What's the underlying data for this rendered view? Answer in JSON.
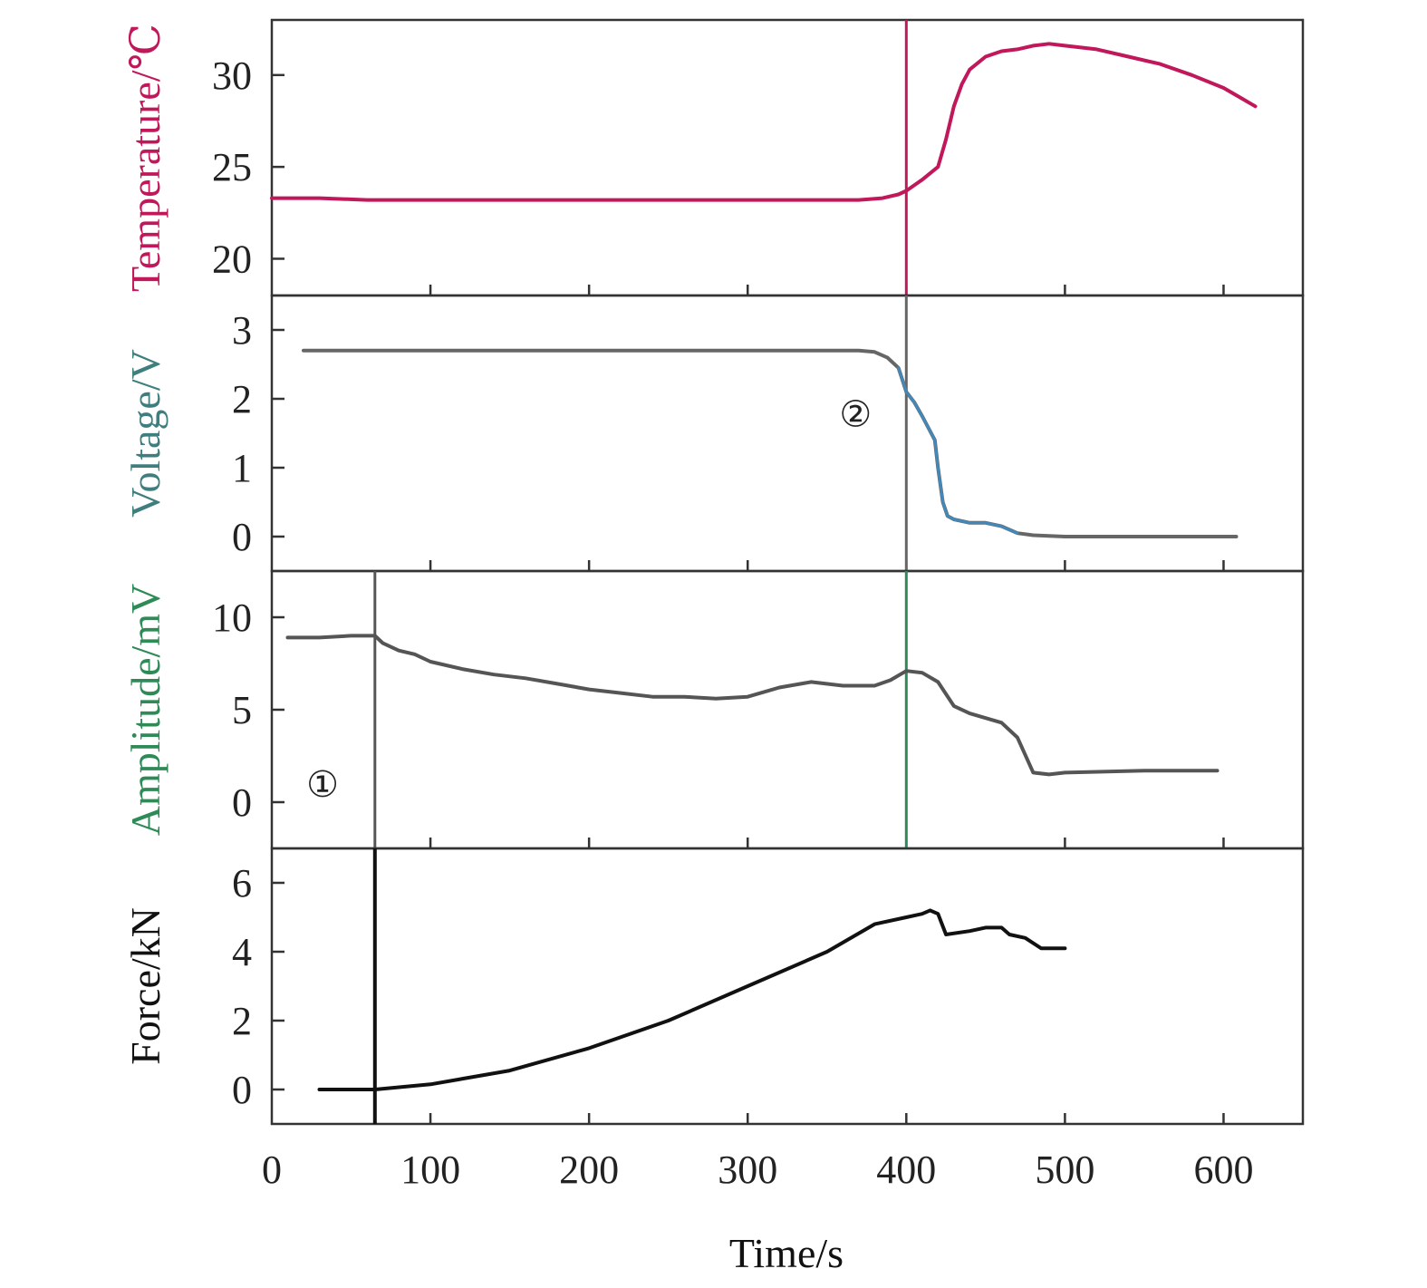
{
  "chart_data": {
    "type": "line",
    "x": {
      "label": "Time/s",
      "range": [
        0,
        650
      ],
      "ticks": [
        0,
        100,
        200,
        300,
        400,
        500,
        600
      ]
    },
    "panels": [
      {
        "id": "temperature",
        "ylabel": "Temperature/℃",
        "ylim": [
          18,
          33
        ],
        "yticks": [
          20,
          25,
          30
        ],
        "color": "#c0185a",
        "series": [
          {
            "points": [
              [
                0,
                23.3
              ],
              [
                30,
                23.3
              ],
              [
                60,
                23.2
              ],
              [
                100,
                23.2
              ],
              [
                200,
                23.2
              ],
              [
                300,
                23.2
              ],
              [
                370,
                23.2
              ],
              [
                385,
                23.3
              ],
              [
                395,
                23.5
              ],
              [
                400,
                23.7
              ],
              [
                410,
                24.3
              ],
              [
                420,
                25.0
              ],
              [
                425,
                26.5
              ],
              [
                430,
                28.3
              ],
              [
                435,
                29.5
              ],
              [
                440,
                30.3
              ],
              [
                450,
                31.0
              ],
              [
                460,
                31.3
              ],
              [
                470,
                31.4
              ],
              [
                480,
                31.6
              ],
              [
                490,
                31.7
              ],
              [
                500,
                31.6
              ],
              [
                520,
                31.4
              ],
              [
                540,
                31.0
              ],
              [
                560,
                30.6
              ],
              [
                580,
                30.0
              ],
              [
                600,
                29.3
              ],
              [
                610,
                28.8
              ],
              [
                620,
                28.3
              ]
            ]
          }
        ],
        "markers": [
          {
            "x": 400,
            "color": "#c0185a"
          }
        ]
      },
      {
        "id": "voltage",
        "ylabel": "Voltage/V",
        "ylim": [
          -0.5,
          3.5
        ],
        "yticks": [
          0,
          1,
          2,
          3
        ],
        "color": "#666666",
        "highlight_color": "#3d8ec9",
        "series": [
          {
            "points": [
              [
                20,
                2.7
              ],
              [
                100,
                2.7
              ],
              [
                200,
                2.7
              ],
              [
                300,
                2.7
              ],
              [
                370,
                2.7
              ],
              [
                380,
                2.68
              ],
              [
                388,
                2.6
              ],
              [
                395,
                2.45
              ],
              [
                400,
                2.1
              ],
              [
                405,
                1.95
              ],
              [
                410,
                1.75
              ],
              [
                418,
                1.4
              ],
              [
                420,
                1.0
              ],
              [
                423,
                0.5
              ],
              [
                426,
                0.3
              ],
              [
                430,
                0.25
              ],
              [
                440,
                0.2
              ],
              [
                450,
                0.2
              ],
              [
                460,
                0.15
              ],
              [
                470,
                0.05
              ],
              [
                480,
                0.02
              ],
              [
                500,
                0.0
              ],
              [
                550,
                0.0
              ],
              [
                600,
                0.0
              ],
              [
                608,
                0.0
              ]
            ]
          }
        ],
        "markers": [
          {
            "x": 400,
            "color": "#666666"
          }
        ],
        "annotations": [
          {
            "text": "②",
            "x": 368,
            "y": 1.6
          }
        ]
      },
      {
        "id": "amplitude",
        "ylabel": "Amplitude/mV",
        "ylim": [
          -2.5,
          12.5
        ],
        "yticks": [
          0,
          5,
          10
        ],
        "color": "#555555",
        "highlight_color": "#2e8b57",
        "series": [
          {
            "points": [
              [
                10,
                8.9
              ],
              [
                30,
                8.9
              ],
              [
                50,
                9.0
              ],
              [
                65,
                9.0
              ],
              [
                70,
                8.6
              ],
              [
                80,
                8.2
              ],
              [
                90,
                8.0
              ],
              [
                100,
                7.6
              ],
              [
                120,
                7.2
              ],
              [
                140,
                6.9
              ],
              [
                160,
                6.7
              ],
              [
                180,
                6.4
              ],
              [
                200,
                6.1
              ],
              [
                220,
                5.9
              ],
              [
                240,
                5.7
              ],
              [
                260,
                5.7
              ],
              [
                280,
                5.6
              ],
              [
                300,
                5.7
              ],
              [
                320,
                6.2
              ],
              [
                340,
                6.5
              ],
              [
                360,
                6.3
              ],
              [
                380,
                6.3
              ],
              [
                390,
                6.6
              ],
              [
                400,
                7.1
              ],
              [
                410,
                7.0
              ],
              [
                420,
                6.5
              ],
              [
                430,
                5.2
              ],
              [
                440,
                4.8
              ],
              [
                460,
                4.3
              ],
              [
                470,
                3.5
              ],
              [
                480,
                1.6
              ],
              [
                490,
                1.5
              ],
              [
                500,
                1.6
              ],
              [
                550,
                1.7
              ],
              [
                596,
                1.7
              ]
            ]
          }
        ],
        "markers": [
          {
            "x": 65,
            "color": "#555555"
          },
          {
            "x": 400,
            "color": "#2e8b57"
          }
        ],
        "annotations": [
          {
            "text": "①",
            "x": 32,
            "y": 0.3
          }
        ]
      },
      {
        "id": "force",
        "ylabel": "Force/kN",
        "ylim": [
          -1,
          7
        ],
        "yticks": [
          0,
          2,
          4,
          6
        ],
        "color": "#111111",
        "series": [
          {
            "points": [
              [
                30,
                0.0
              ],
              [
                65,
                0.0
              ],
              [
                100,
                0.15
              ],
              [
                150,
                0.55
              ],
              [
                200,
                1.2
              ],
              [
                250,
                2.0
              ],
              [
                300,
                3.0
              ],
              [
                350,
                4.0
              ],
              [
                380,
                4.8
              ],
              [
                400,
                5.0
              ],
              [
                410,
                5.1
              ],
              [
                415,
                5.2
              ],
              [
                420,
                5.1
              ],
              [
                425,
                4.5
              ],
              [
                440,
                4.6
              ],
              [
                450,
                4.7
              ],
              [
                460,
                4.7
              ],
              [
                465,
                4.5
              ],
              [
                475,
                4.4
              ],
              [
                485,
                4.1
              ],
              [
                500,
                4.1
              ]
            ]
          }
        ],
        "markers": [
          {
            "x": 65,
            "color": "#111111"
          }
        ]
      }
    ]
  }
}
